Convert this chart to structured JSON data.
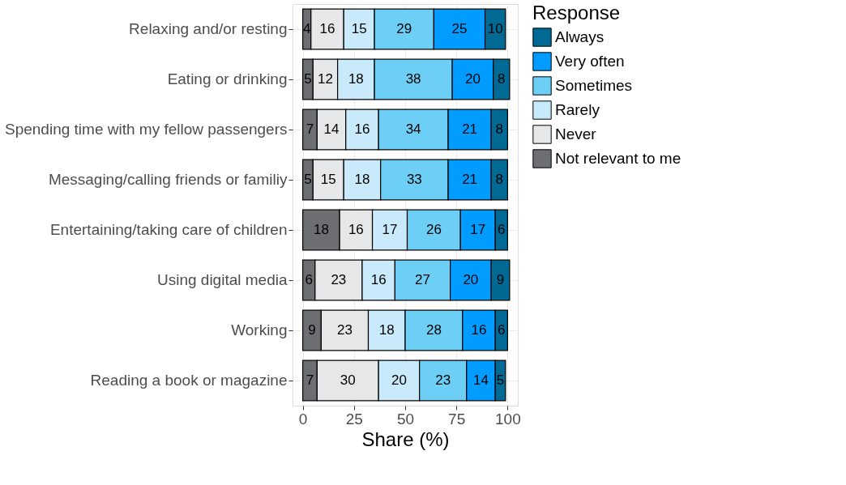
{
  "chart_data": {
    "type": "bar",
    "orientation": "horizontal",
    "stacked": true,
    "data_labels": true,
    "grid": true,
    "legend": "right",
    "legend_title": "Response",
    "xlabel": "Share (%)",
    "categories": [
      "Relaxing and/or resting",
      "Eating or drinking",
      "Spending time with my fellow passengers",
      "Messaging/calling friends or familiy",
      "Entertaining/taking care of children",
      "Using digital media",
      "Working",
      "Reading a book or magazine"
    ],
    "xlim": [
      -5,
      105
    ],
    "xticks": [
      0,
      25,
      50,
      75,
      100
    ],
    "series": [
      {
        "name": "Not relevant to me",
        "color": "#6d6e71",
        "values": [
          4,
          5,
          7,
          5,
          18,
          6,
          9,
          7
        ]
      },
      {
        "name": "Never",
        "color": "#e6e7e8",
        "values": [
          16,
          12,
          14,
          15,
          16,
          23,
          23,
          30
        ]
      },
      {
        "name": "Rarely",
        "color": "#c8eafb",
        "values": [
          15,
          18,
          16,
          18,
          17,
          16,
          18,
          20
        ]
      },
      {
        "name": "Sometimes",
        "color": "#6dcff6",
        "values": [
          29,
          38,
          34,
          33,
          26,
          27,
          28,
          23
        ]
      },
      {
        "name": "Very often",
        "color": "#009cff",
        "values": [
          25,
          20,
          21,
          21,
          17,
          20,
          16,
          14
        ]
      },
      {
        "name": "Always",
        "color": "#006a94",
        "values": [
          10,
          8,
          8,
          8,
          6,
          9,
          6,
          5
        ]
      }
    ]
  }
}
